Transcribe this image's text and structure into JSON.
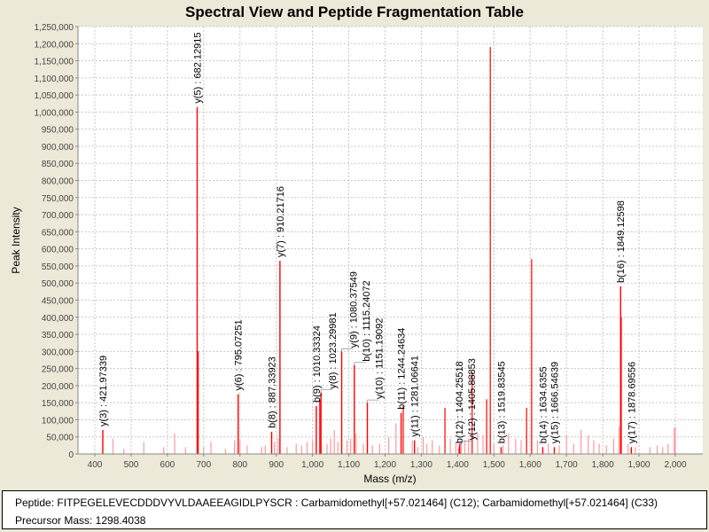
{
  "chart_data": {
    "type": "bar",
    "title": "Spectral View and Peptide Fragmentation Table",
    "xlabel": "Mass (m/z)",
    "ylabel": "Peak Intensity",
    "xlim": [
      350,
      2075
    ],
    "ylim": [
      0,
      1250000
    ],
    "xticks": [
      400,
      500,
      600,
      700,
      800,
      900,
      1000,
      1100,
      1200,
      1300,
      1400,
      1500,
      1600,
      1700,
      1800,
      1900,
      2000
    ],
    "xtick_labels": [
      "400",
      "500",
      "600",
      "700",
      "800",
      "900",
      "1,000",
      "1,100",
      "1,200",
      "1,300",
      "1,400",
      "1,500",
      "1,600",
      "1,700",
      "1,800",
      "1,900",
      "2,000"
    ],
    "yticks": [
      0,
      50000,
      100000,
      150000,
      200000,
      250000,
      300000,
      350000,
      400000,
      450000,
      500000,
      550000,
      600000,
      650000,
      700000,
      750000,
      800000,
      850000,
      900000,
      950000,
      1000000,
      1050000,
      1100000,
      1150000,
      1200000,
      1250000
    ],
    "ytick_labels": [
      "0",
      "50,000",
      "100,000",
      "150,000",
      "200,000",
      "250,000",
      "300,000",
      "350,000",
      "400,000",
      "450,000",
      "500,000",
      "550,000",
      "600,000",
      "650,000",
      "700,000",
      "750,000",
      "800,000",
      "850,000",
      "900,000",
      "950,000",
      "1,000,000",
      "1,050,000",
      "1,100,000",
      "1,150,000",
      "1,200,000",
      "1,250,000"
    ],
    "grid": true,
    "colors": {
      "peak": "#ff0000",
      "minor_peak": "#ff9a9a",
      "grid": "#c8c8c8"
    },
    "annotated_peaks": [
      {
        "mz": 421.97339,
        "intensity": 70000,
        "label": "y(3) : 421.97339"
      },
      {
        "mz": 682.12915,
        "intensity": 1015000,
        "label": "y(5) : 682.12915"
      },
      {
        "mz": 795.07251,
        "intensity": 175000,
        "label": "y(6) : 795.07251"
      },
      {
        "mz": 887.33923,
        "intensity": 65000,
        "label": "b(8) : 887.33923"
      },
      {
        "mz": 910.21716,
        "intensity": 565000,
        "label": "y(7) : 910.21716"
      },
      {
        "mz": 1010.33324,
        "intensity": 140000,
        "label": "b(9) : 1010.33324"
      },
      {
        "mz": 1023.29981,
        "intensity": 180000,
        "label": "y(8) : 1023.29981"
      },
      {
        "mz": 1080.37549,
        "intensity": 300000,
        "label": "y(9) : 1080.37549"
      },
      {
        "mz": 1115.24072,
        "intensity": 260000,
        "label": "b(10) : 1115.24072"
      },
      {
        "mz": 1151.19092,
        "intensity": 150000,
        "label": "y(10) : 1151.19092"
      },
      {
        "mz": 1244.24634,
        "intensity": 120000,
        "label": "b(11) : 1244.24634"
      },
      {
        "mz": 1281.06641,
        "intensity": 40000,
        "label": "y(11) : 1281.06641"
      },
      {
        "mz": 1404.25518,
        "intensity": 20000,
        "label": "b(12) : 1404.25518"
      },
      {
        "mz": 1405.88853,
        "intensity": 30000,
        "label": "y(12) : 1405.88853"
      },
      {
        "mz": 1519.83545,
        "intensity": 20000,
        "label": "b(13) : 1519.83545"
      },
      {
        "mz": 1634.6355,
        "intensity": 20000,
        "label": "b(14) : 1634.6355"
      },
      {
        "mz": 1666.54639,
        "intensity": 20000,
        "label": "y(15) : 1666.54639"
      },
      {
        "mz": 1849.12598,
        "intensity": 490000,
        "label": "b(16) : 1849.12598"
      },
      {
        "mz": 1878.69556,
        "intensity": 20000,
        "label": "y(17) : 1878.69556"
      }
    ],
    "peaks": [
      [
        685,
        300000
      ],
      [
        1490,
        1190000
      ],
      [
        1604,
        570000
      ],
      [
        1851,
        400000
      ],
      [
        1440,
        240000
      ],
      [
        1480,
        160000
      ],
      [
        1365,
        135000
      ],
      [
        1590,
        135000
      ],
      [
        1060,
        70000
      ],
      [
        1020,
        160000
      ],
      [
        1000,
        40000
      ],
      [
        1120,
        60000
      ],
      [
        1230,
        90000
      ],
      [
        1250,
        140000
      ],
      [
        1210,
        50000
      ],
      [
        1305,
        50000
      ],
      [
        1330,
        40000
      ],
      [
        1420,
        40000
      ],
      [
        1455,
        60000
      ],
      [
        1470,
        55000
      ],
      [
        1540,
        60000
      ],
      [
        1560,
        45000
      ],
      [
        1620,
        40000
      ],
      [
        1700,
        55000
      ],
      [
        1740,
        70000
      ],
      [
        1760,
        55000
      ],
      [
        1790,
        30000
      ],
      [
        1830,
        45000
      ],
      [
        1845,
        80000
      ],
      [
        1870,
        30000
      ],
      [
        1950,
        25000
      ],
      [
        1980,
        30000
      ],
      [
        1997,
        75000
      ],
      [
        2000,
        80000
      ],
      [
        450,
        45000
      ],
      [
        480,
        15000
      ],
      [
        535,
        35000
      ],
      [
        590,
        20000
      ],
      [
        620,
        60000
      ],
      [
        650,
        20000
      ],
      [
        700,
        20000
      ],
      [
        720,
        35000
      ],
      [
        760,
        15000
      ],
      [
        785,
        40000
      ],
      [
        800,
        40000
      ],
      [
        820,
        25000
      ],
      [
        860,
        20000
      ],
      [
        870,
        25000
      ],
      [
        895,
        35000
      ],
      [
        905,
        45000
      ],
      [
        930,
        20000
      ],
      [
        955,
        30000
      ],
      [
        970,
        25000
      ],
      [
        985,
        35000
      ],
      [
        1040,
        30000
      ],
      [
        1050,
        45000
      ],
      [
        1070,
        35000
      ],
      [
        1095,
        40000
      ],
      [
        1105,
        45000
      ],
      [
        1140,
        30000
      ],
      [
        1165,
        25000
      ],
      [
        1185,
        30000
      ],
      [
        1275,
        40000
      ],
      [
        1290,
        20000
      ],
      [
        1315,
        30000
      ],
      [
        1350,
        25000
      ],
      [
        1380,
        45000
      ],
      [
        1395,
        30000
      ],
      [
        1410,
        35000
      ],
      [
        1430,
        45000
      ],
      [
        1500,
        30000
      ],
      [
        1525,
        25000
      ],
      [
        1575,
        40000
      ],
      [
        1650,
        30000
      ],
      [
        1680,
        25000
      ],
      [
        1720,
        30000
      ],
      [
        1775,
        40000
      ],
      [
        1810,
        25000
      ],
      [
        1890,
        20000
      ],
      [
        1930,
        20000
      ],
      [
        1965,
        20000
      ]
    ]
  },
  "info": {
    "peptide": "Peptide: FITPEGELEVECDDDVYVLDAAEEAGIDLPYSCR : Carbamidomethyl[+57.021464] (C12); Carbamidomethyl[+57.021464] (C33)",
    "precursor": "Precursor Mass: 1298.4038"
  }
}
